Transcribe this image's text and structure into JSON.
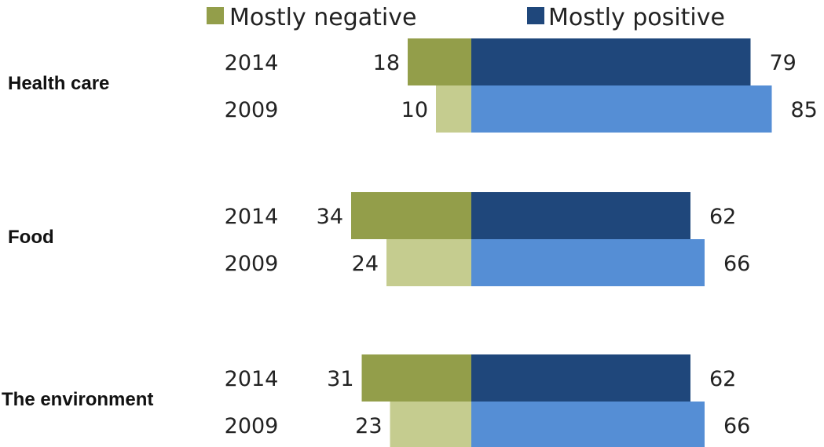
{
  "colors": {
    "negative_2014": "#939e4a",
    "negative_2009": "#c5cc8f",
    "positive_2014": "#1f477b",
    "positive_2009": "#558ed5"
  },
  "legend": [
    {
      "label": "Mostly negative",
      "color": "#939e4a"
    },
    {
      "label": "Mostly positive",
      "color": "#1f477b"
    }
  ],
  "chart_data": {
    "type": "bar",
    "orientation": "horizontal-diverging",
    "categories": [
      "Health care",
      "Food",
      "The environment"
    ],
    "years": [
      "2014",
      "2009"
    ],
    "series": [
      {
        "name": "Mostly negative",
        "values": {
          "Health care": {
            "2014": 18,
            "2009": 10
          },
          "Food": {
            "2014": 34,
            "2009": 24
          },
          "The environment": {
            "2014": 31,
            "2009": 23
          }
        }
      },
      {
        "name": "Mostly positive",
        "values": {
          "Health care": {
            "2014": 79,
            "2009": 85
          },
          "Food": {
            "2014": 62,
            "2009": 66
          },
          "The environment": {
            "2014": 62,
            "2009": 66
          }
        }
      }
    ],
    "title": "",
    "xlabel": "",
    "ylabel": "",
    "grid": false,
    "legend_position": "top"
  }
}
